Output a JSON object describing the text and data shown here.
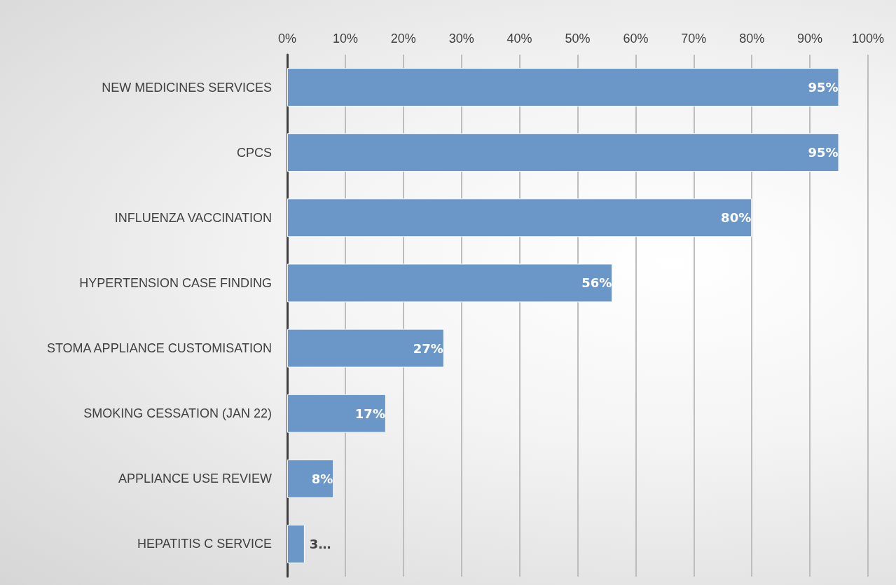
{
  "chart_data": {
    "type": "bar",
    "orientation": "horizontal",
    "categories": [
      "NEW MEDICINES SERVICES",
      "CPCS",
      "INFLUENZA VACCINATION",
      "HYPERTENSION CASE FINDING",
      "STOMA APPLIANCE CUSTOMISATION",
      "SMOKING CESSATION (JAN 22)",
      "APPLIANCE USE REVIEW",
      "HEPATITIS C SERVICE"
    ],
    "values": [
      95,
      95,
      80,
      56,
      27,
      17,
      8,
      3
    ],
    "value_labels": [
      "95%",
      "95%",
      "80%",
      "56%",
      "27%",
      "17%",
      "8%",
      "3…"
    ],
    "color": "#6a96c8",
    "xlim": [
      0,
      100
    ],
    "xticks": [
      {
        "value": 0,
        "label": "0%"
      },
      {
        "value": 10,
        "label": "10%"
      },
      {
        "value": 20,
        "label": "20%"
      },
      {
        "value": 30,
        "label": "30%"
      },
      {
        "value": 40,
        "label": "40%"
      },
      {
        "value": 50,
        "label": "50%"
      },
      {
        "value": 60,
        "label": "60%"
      },
      {
        "value": 70,
        "label": "70%"
      },
      {
        "value": 80,
        "label": "80%"
      },
      {
        "value": 90,
        "label": "90%"
      },
      {
        "value": 100,
        "label": "100%"
      }
    ],
    "grid": "x"
  }
}
